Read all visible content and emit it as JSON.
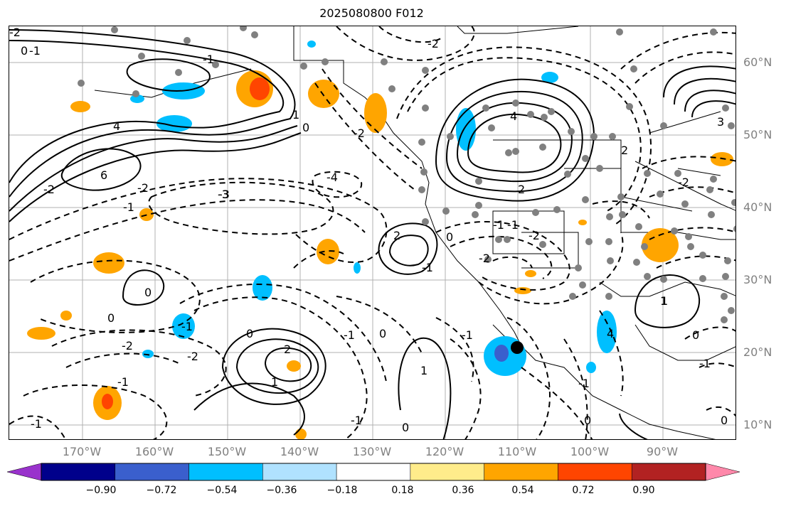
{
  "title": "2025080800 F012",
  "lat_labels": [
    "60°N",
    "50°N",
    "40°N",
    "30°N",
    "20°N",
    "10°N"
  ],
  "lon_labels": [
    "170°W",
    "160°W",
    "150°W",
    "140°W",
    "130°W",
    "120°W",
    "110°W",
    "100°W",
    "90°W"
  ],
  "contour_labels": [
    "-2",
    "-1",
    "0",
    "4",
    "6",
    "-4",
    "-3",
    "-2",
    "-2",
    "-1",
    "1",
    "-1",
    "0",
    "-2",
    "-1",
    "0",
    "0",
    "1",
    "-1",
    "2",
    "-3",
    "4",
    "2",
    "-2",
    "-1",
    "-1",
    "-1",
    "0",
    "0",
    "1",
    "0",
    "-1",
    "-2",
    "0",
    "0",
    "1",
    "-1",
    "-2",
    "-1",
    "-2",
    "3",
    "2",
    "4",
    "-2",
    "0",
    "2",
    "-1",
    "-1",
    "0",
    "-1",
    "-2",
    "1"
  ],
  "colorbar": {
    "tick_labels": [
      "−0.90",
      "−0.72",
      "−0.54",
      "−0.36",
      "−0.18",
      "0.18",
      "0.36",
      "0.54",
      "0.72",
      "0.90"
    ],
    "colors": [
      "#9932cc",
      "#00008b",
      "#3a5fcd",
      "#00bfff",
      "#b0e2ff",
      "#ffffff",
      "#ffec8b",
      "#ffa500",
      "#ff4500",
      "#b22222",
      "#ff88aa"
    ]
  }
}
